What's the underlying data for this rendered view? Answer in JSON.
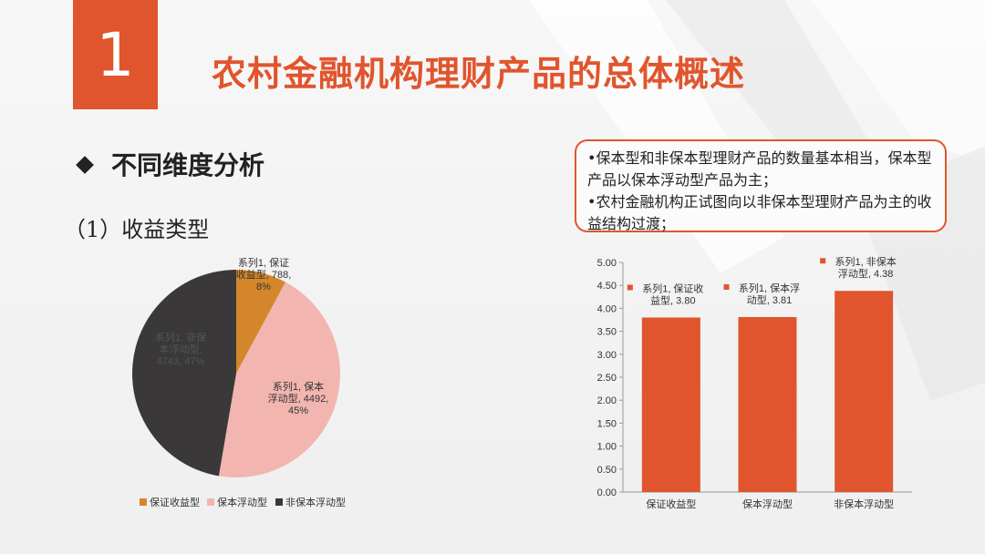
{
  "header": {
    "number": "1",
    "title": "农村金融机构理财产品的总体概述"
  },
  "section_title": "不同维度分析",
  "subsection_title": "（1）收益类型",
  "callout": {
    "line1": "•保本型和非保本型理财产品的数量基本相当，保本型产品以保本浮动型产品为主；",
    "line2": "•农村金融机构正试图向以非保本型理财产品为主的收益结构过渡；"
  },
  "chart_data": [
    {
      "type": "pie",
      "categories": [
        "保证收益型",
        "保本浮动型",
        "非保本浮动型"
      ],
      "values": [
        788,
        4492,
        4743
      ],
      "percents": [
        "8%",
        "45%",
        "47%"
      ],
      "data_labels": [
        [
          "系列1, 保证",
          "收益型, 788,",
          "8%"
        ],
        [
          "系列1, 保本",
          "浮动型, 4492,",
          "45%"
        ],
        [
          "系列1, 非保",
          "本浮动型,",
          "4743, 47%"
        ]
      ],
      "colors": [
        "#d4872a",
        "#f2b5b0",
        "#3a3839"
      ],
      "legend": "bottom"
    },
    {
      "type": "bar",
      "categories": [
        "保证收益型",
        "保本浮动型",
        "非保本浮动型"
      ],
      "values": [
        3.8,
        3.81,
        4.38
      ],
      "data_labels": [
        [
          "系列1, 保证收",
          "益型, 3.80"
        ],
        [
          "系列1, 保本浮",
          "动型, 3.81"
        ],
        [
          "系列1, 非保本",
          "浮动型, 4.38"
        ]
      ],
      "ylim": [
        0,
        5
      ],
      "yticks": [
        "0.00",
        "0.50",
        "1.00",
        "1.50",
        "2.00",
        "2.50",
        "3.00",
        "3.50",
        "4.00",
        "4.50",
        "5.00"
      ],
      "color": "#e0552d",
      "grid": false
    }
  ]
}
